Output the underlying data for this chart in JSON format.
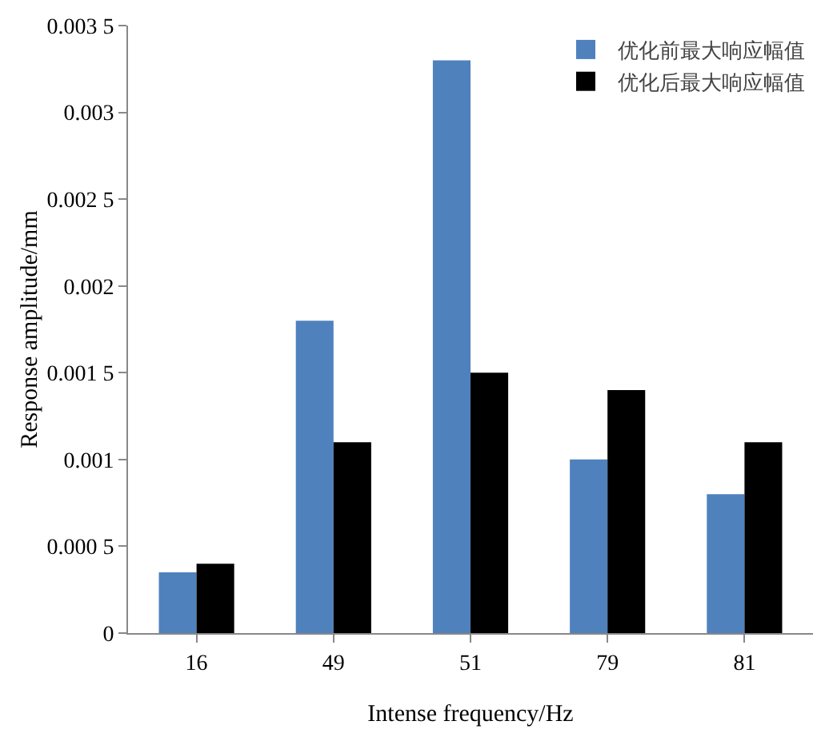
{
  "chart_data": {
    "type": "bar",
    "xlabel": "Intense frequency/Hz",
    "ylabel": "Response amplitude/mm",
    "categories": [
      "16",
      "49",
      "51",
      "79",
      "81"
    ],
    "series": [
      {
        "name": "优化前最大响应幅值",
        "color": "#4f81bd",
        "values": [
          0.00035,
          0.0018,
          0.0033,
          0.001,
          0.0008
        ]
      },
      {
        "name": "优化后最大响应幅值",
        "color": "#000000",
        "values": [
          0.0004,
          0.0011,
          0.0015,
          0.0014,
          0.0011
        ]
      }
    ],
    "ylim": [
      0,
      0.0035
    ],
    "yticks": [
      0,
      {
        "value": 0.0005,
        "label": "0.000 5"
      },
      0.001,
      {
        "value": 0.0015,
        "label": "0.001 5"
      },
      0.002,
      {
        "value": 0.0025,
        "label": "0.002 5"
      },
      0.003,
      {
        "value": 0.0035,
        "label": "0.003 5"
      }
    ],
    "grid": false,
    "legend": "top right"
  }
}
